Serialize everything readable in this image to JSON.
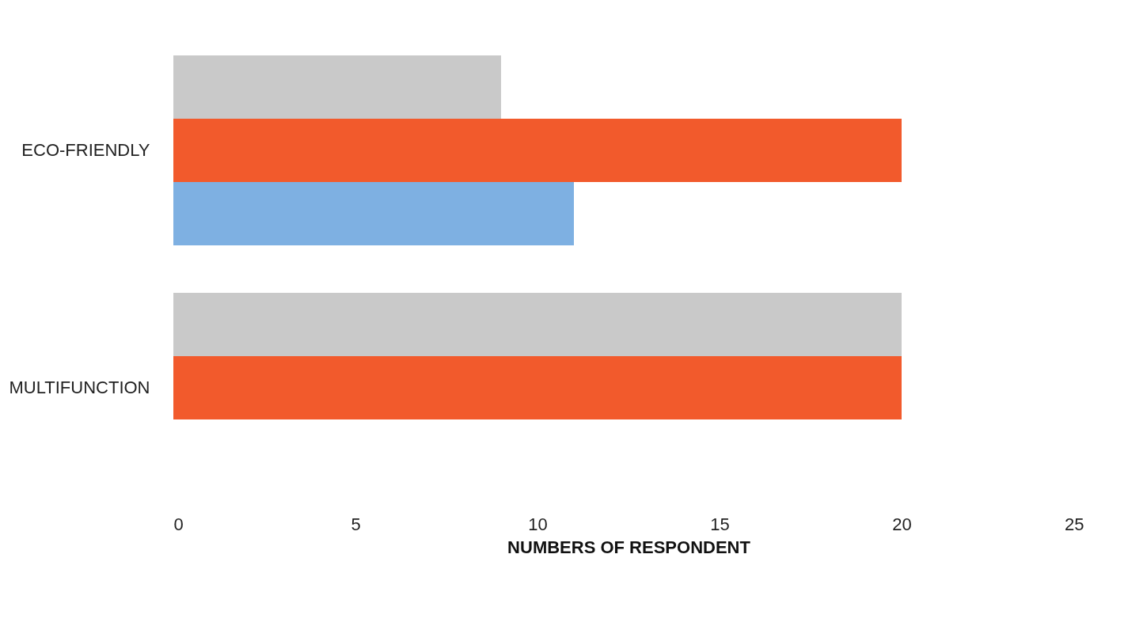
{
  "chart_data": {
    "type": "bar",
    "orientation": "horizontal",
    "xlabel": "NUMBERS OF RESPONDENT",
    "categories": [
      "ECO-FRIENDLY",
      "MULTIFUNCTION"
    ],
    "series": [
      {
        "color": "#c9c9c9",
        "values": [
          9,
          20
        ]
      },
      {
        "color": "#f25a2c",
        "values": [
          20,
          20
        ]
      },
      {
        "color": "#7eb0e2",
        "values": [
          11,
          null
        ]
      }
    ],
    "xlim": [
      0,
      25
    ],
    "xticks": [
      0,
      5,
      10,
      15,
      20,
      25
    ],
    "grid": false,
    "legend": false
  }
}
